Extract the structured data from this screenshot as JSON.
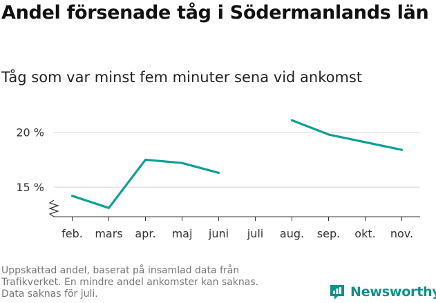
{
  "title": "Andel försenade tåg i Södermanlands län",
  "subtitle": "Tåg som var minst fem minuter sena vid ankomst",
  "note_lines": [
    "Uppskattad andel, baserat på insamlad data från",
    "Trafikverket. En mindre andel ankomster kan saknas.",
    "Data saknas för juli."
  ],
  "brand": {
    "name": "Newsworthy",
    "color": "#0f9185"
  },
  "chart_data": {
    "type": "line",
    "categories": [
      "feb.",
      "mars",
      "apr.",
      "maj",
      "juni",
      "juli",
      "aug.",
      "sep.",
      "okt.",
      "nov."
    ],
    "series": [
      {
        "values": [
          14.2,
          13.1,
          17.5,
          17.2,
          16.3,
          null,
          21.1,
          19.8,
          19.1,
          18.4
        ]
      }
    ],
    "yticks": [
      15,
      20
    ],
    "ytick_labels": [
      "15 %",
      "20 %"
    ],
    "ylim": [
      12.3,
      22.5
    ],
    "axis_break": true,
    "grid": true,
    "color": "#0f9f95",
    "xlabel": "",
    "ylabel": ""
  }
}
